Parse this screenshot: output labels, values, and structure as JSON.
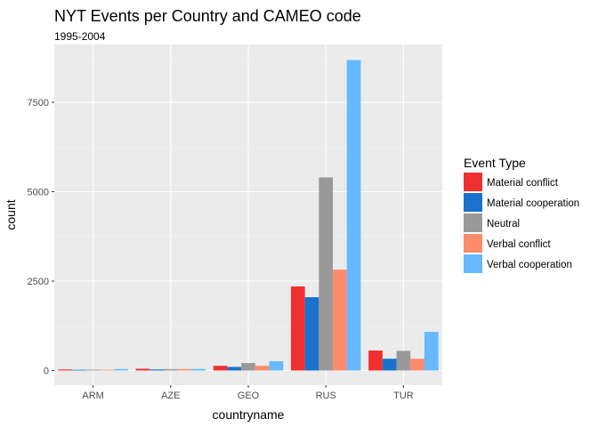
{
  "chart_data": {
    "type": "bar",
    "title": "NYT Events per Country and CAMEO code",
    "subtitle": "1995-2004",
    "xlabel": "countryname",
    "ylabel": "count",
    "categories": [
      "ARM",
      "AZE",
      "GEO",
      "RUS",
      "TUR"
    ],
    "ylim": [
      0,
      8700
    ],
    "yticks": [
      0,
      2500,
      5000,
      7500
    ],
    "yticks_labels": [
      "0",
      "2500",
      "5000",
      "7500"
    ],
    "grid": true,
    "legend": {
      "title": "Event Type",
      "position": "right"
    },
    "series": [
      {
        "name": "Material conflict",
        "color": "#f03030",
        "values": [
          30,
          50,
          130,
          2350,
          560
        ]
      },
      {
        "name": "Material cooperation",
        "color": "#1a72cc",
        "values": [
          20,
          30,
          100,
          2050,
          330
        ]
      },
      {
        "name": "Neutral",
        "color": "#999999",
        "values": [
          25,
          40,
          210,
          5400,
          550
        ]
      },
      {
        "name": "Verbal conflict",
        "color": "#fb8b6c",
        "values": [
          20,
          40,
          130,
          2820,
          330
        ]
      },
      {
        "name": "Verbal cooperation",
        "color": "#66b8ff",
        "values": [
          40,
          45,
          260,
          8680,
          1080
        ]
      }
    ]
  }
}
